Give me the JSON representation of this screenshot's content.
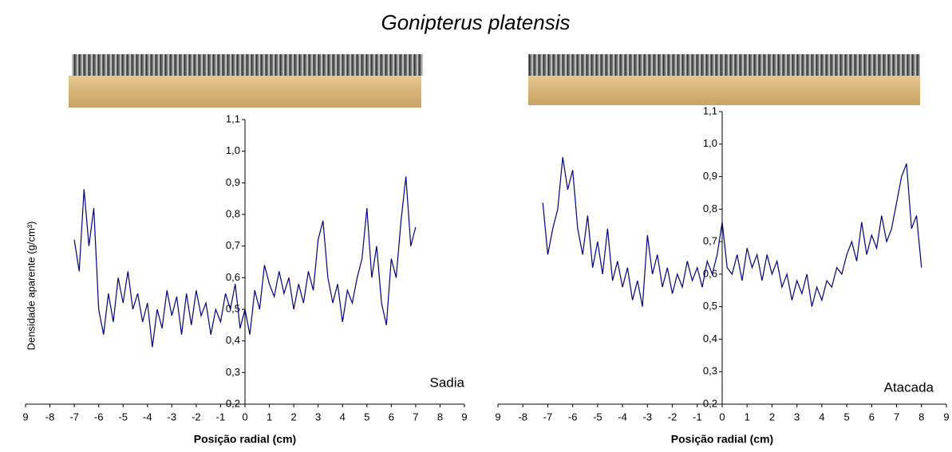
{
  "title": "Gonipterus platensis",
  "chart_data": [
    {
      "type": "line",
      "y_label": "Densidade aparente (g/cm³)",
      "x_label": "Posição radial (cm)",
      "xlim": [
        -9,
        9
      ],
      "ylim": [
        0.2,
        1.1
      ],
      "xticks": [
        {
          "value": -9,
          "label": "9"
        },
        -8,
        -7,
        -6,
        -5,
        -4,
        -3,
        -2,
        -1,
        0,
        1,
        2,
        3,
        4,
        5,
        6,
        7,
        8,
        9
      ],
      "yticks": [
        {
          "value": 0.2,
          "label": "0,2"
        },
        {
          "value": 0.3,
          "label": "0,3"
        },
        {
          "value": 0.4,
          "label": "0,4"
        },
        {
          "value": 0.5,
          "label": "0,5"
        },
        {
          "value": 0.6,
          "label": "0,6"
        },
        {
          "value": 0.7,
          "label": "0,7"
        },
        {
          "value": 0.8,
          "label": "0,8"
        },
        {
          "value": 0.9,
          "label": "0,9"
        },
        {
          "value": 1.0,
          "label": "1,0"
        },
        {
          "value": 1.1,
          "label": "1,1"
        }
      ],
      "x": [
        -7.0,
        -6.8,
        -6.6,
        -6.4,
        -6.2,
        -6.0,
        -5.8,
        -5.6,
        -5.4,
        -5.2,
        -5.0,
        -4.8,
        -4.6,
        -4.4,
        -4.2,
        -4.0,
        -3.8,
        -3.6,
        -3.4,
        -3.2,
        -3.0,
        -2.8,
        -2.6,
        -2.4,
        -2.2,
        -2.0,
        -1.8,
        -1.6,
        -1.4,
        -1.2,
        -1.0,
        -0.8,
        -0.6,
        -0.4,
        -0.2,
        0.0,
        0.2,
        0.4,
        0.6,
        0.8,
        1.0,
        1.2,
        1.4,
        1.6,
        1.8,
        2.0,
        2.2,
        2.4,
        2.6,
        2.8,
        3.0,
        3.2,
        3.4,
        3.6,
        3.8,
        4.0,
        4.2,
        4.4,
        4.6,
        4.8,
        5.0,
        5.2,
        5.4,
        5.6,
        5.8,
        6.0,
        6.2,
        6.4,
        6.6,
        6.8,
        7.0
      ],
      "series": [
        {
          "name": "Sadia",
          "color": "#000080",
          "values": [
            0.72,
            0.62,
            0.88,
            0.7,
            0.82,
            0.5,
            0.42,
            0.55,
            0.46,
            0.6,
            0.52,
            0.62,
            0.5,
            0.55,
            0.46,
            0.52,
            0.38,
            0.5,
            0.44,
            0.56,
            0.48,
            0.54,
            0.42,
            0.55,
            0.45,
            0.56,
            0.48,
            0.52,
            0.42,
            0.5,
            0.46,
            0.55,
            0.5,
            0.58,
            0.44,
            0.5,
            0.42,
            0.56,
            0.5,
            0.64,
            0.58,
            0.54,
            0.62,
            0.55,
            0.6,
            0.5,
            0.58,
            0.52,
            0.62,
            0.56,
            0.72,
            0.78,
            0.6,
            0.52,
            0.58,
            0.46,
            0.56,
            0.52,
            0.6,
            0.66,
            0.82,
            0.6,
            0.7,
            0.52,
            0.45,
            0.66,
            0.6,
            0.78,
            0.92,
            0.7,
            0.76
          ]
        }
      ]
    },
    {
      "type": "line",
      "x_label": "Posição radial (cm)",
      "xlim": [
        -9,
        9
      ],
      "ylim": [
        0.2,
        1.1
      ],
      "xticks": [
        {
          "value": -9,
          "label": "9"
        },
        -8,
        -7,
        -6,
        -5,
        -4,
        -3,
        -2,
        -1,
        0,
        1,
        2,
        3,
        4,
        5,
        6,
        7,
        8,
        9
      ],
      "yticks": [
        {
          "value": 0.2,
          "label": "0,2"
        },
        {
          "value": 0.3,
          "label": "0,3"
        },
        {
          "value": 0.4,
          "label": "0,4"
        },
        {
          "value": 0.5,
          "label": "0,5"
        },
        {
          "value": 0.6,
          "label": "0,6"
        },
        {
          "value": 0.7,
          "label": "0,7"
        },
        {
          "value": 0.8,
          "label": "0,8"
        },
        {
          "value": 0.9,
          "label": "0,9"
        },
        {
          "value": 1.0,
          "label": "1,0"
        },
        {
          "value": 1.1,
          "label": "1,1"
        }
      ],
      "x": [
        -7.2,
        -7.0,
        -6.8,
        -6.6,
        -6.4,
        -6.2,
        -6.0,
        -5.8,
        -5.6,
        -5.4,
        -5.2,
        -5.0,
        -4.8,
        -4.6,
        -4.4,
        -4.2,
        -4.0,
        -3.8,
        -3.6,
        -3.4,
        -3.2,
        -3.0,
        -2.8,
        -2.6,
        -2.4,
        -2.2,
        -2.0,
        -1.8,
        -1.6,
        -1.4,
        -1.2,
        -1.0,
        -0.8,
        -0.6,
        -0.4,
        -0.2,
        0.0,
        0.2,
        0.4,
        0.6,
        0.8,
        1.0,
        1.2,
        1.4,
        1.6,
        1.8,
        2.0,
        2.2,
        2.4,
        2.6,
        2.8,
        3.0,
        3.2,
        3.4,
        3.6,
        3.8,
        4.0,
        4.2,
        4.4,
        4.6,
        4.8,
        5.0,
        5.2,
        5.4,
        5.6,
        5.8,
        6.0,
        6.2,
        6.4,
        6.6,
        6.8,
        7.0,
        7.2,
        7.4,
        7.6,
        7.8,
        8.0
      ],
      "series": [
        {
          "name": "Atacada",
          "color": "#000080",
          "values": [
            0.82,
            0.66,
            0.74,
            0.8,
            0.96,
            0.86,
            0.92,
            0.74,
            0.66,
            0.78,
            0.62,
            0.7,
            0.6,
            0.74,
            0.58,
            0.64,
            0.56,
            0.62,
            0.52,
            0.58,
            0.5,
            0.72,
            0.6,
            0.66,
            0.56,
            0.62,
            0.54,
            0.6,
            0.56,
            0.64,
            0.58,
            0.62,
            0.56,
            0.64,
            0.6,
            0.66,
            0.76,
            0.62,
            0.6,
            0.66,
            0.58,
            0.68,
            0.62,
            0.66,
            0.58,
            0.66,
            0.6,
            0.64,
            0.56,
            0.6,
            0.52,
            0.58,
            0.54,
            0.6,
            0.5,
            0.56,
            0.52,
            0.58,
            0.56,
            0.62,
            0.6,
            0.66,
            0.7,
            0.64,
            0.76,
            0.66,
            0.72,
            0.68,
            0.78,
            0.7,
            0.74,
            0.82,
            0.9,
            0.94,
            0.74,
            0.78,
            0.62
          ]
        }
      ]
    }
  ]
}
